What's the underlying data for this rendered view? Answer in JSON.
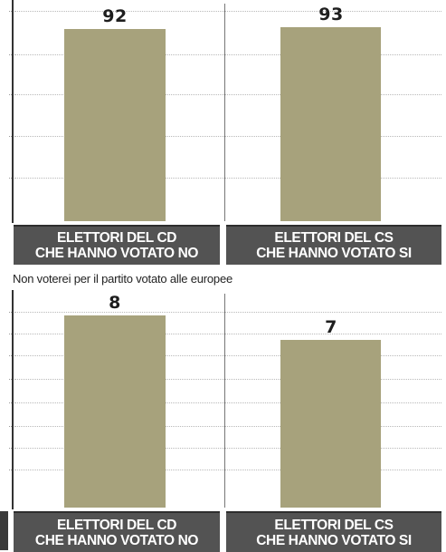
{
  "chart_data": [
    {
      "type": "bar",
      "title": "",
      "categories": [
        "ELETTORI DEL CD CHE HANNO VOTATO NO",
        "ELETTORI DEL CS CHE HANNO VOTATO SI"
      ],
      "values": [
        92,
        93
      ],
      "ylim": [
        0,
        100
      ],
      "grid": true,
      "labels": [
        {
          "line1": "ELETTORI DEL CD",
          "line2": "CHE HANNO VOTATO NO"
        },
        {
          "line1": "ELETTORI DEL CS",
          "line2": "CHE HANNO VOTATO SI"
        }
      ],
      "bar_color": "#a7a27c"
    },
    {
      "type": "bar",
      "title": "Non voterei per il partito votato alle europee",
      "categories": [
        "ELETTORI DEL CD CHE HANNO VOTATO NO",
        "ELETTORI DEL CS CHE HANNO VOTATO SI"
      ],
      "values": [
        8,
        7
      ],
      "ylim": [
        0,
        10
      ],
      "grid": true,
      "labels": [
        {
          "line1": "ELETTORI DEL CD",
          "line2": "CHE HANNO VOTATO NO"
        },
        {
          "line1": "ELETTORI DEL CS",
          "line2": "CHE HANNO VOTATO SI"
        }
      ],
      "bar_color": "#a7a27c"
    }
  ],
  "colors": {
    "bar": "#a7a27c",
    "label_bg": "#535353",
    "label_text": "#ffffff"
  }
}
